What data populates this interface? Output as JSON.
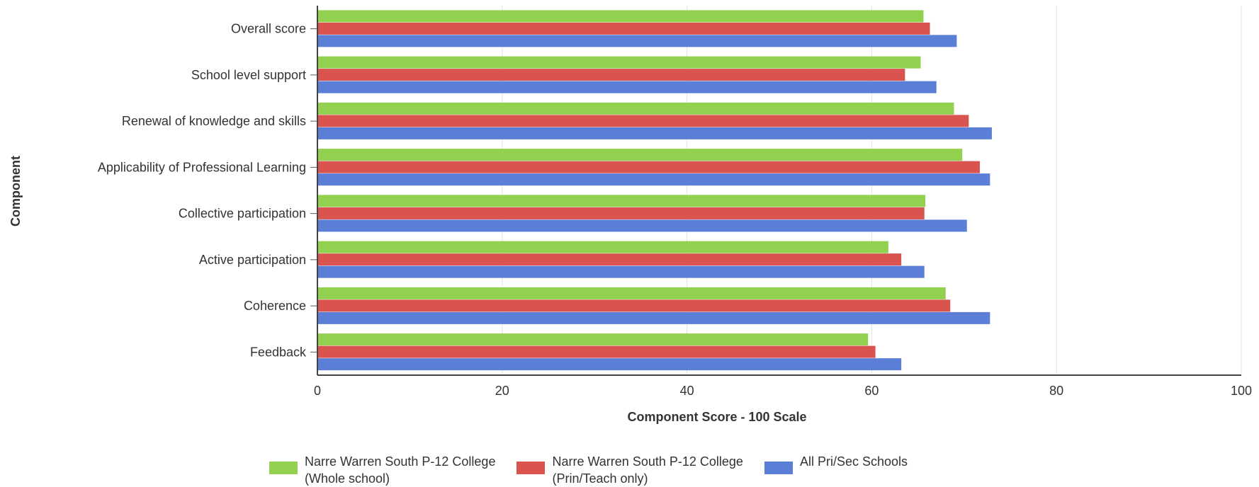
{
  "chart_data": {
    "type": "bar",
    "orientation": "horizontal",
    "title": "",
    "xlabel": "Component Score - 100 Scale",
    "ylabel": "Component",
    "xlim": [
      0,
      100
    ],
    "xticks": [
      0,
      20,
      40,
      60,
      80,
      100
    ],
    "categories": [
      "Overall score",
      "School level support",
      "Renewal of knowledge and skills",
      "Applicability of Professional Learning",
      "Collective participation",
      "Active participation",
      "Coherence",
      "Feedback"
    ],
    "series": [
      {
        "name": "Narre Warren South P-12 College\n(Whole school)",
        "color": "#92d050",
        "values": [
          65.6,
          65.3,
          68.9,
          69.8,
          65.8,
          61.8,
          68.0,
          59.6
        ]
      },
      {
        "name": "Narre Warren South P-12 College\n (Prin/Teach only)",
        "color": "#d9534f",
        "values": [
          66.3,
          63.6,
          70.5,
          71.7,
          65.7,
          63.2,
          68.5,
          60.4
        ]
      },
      {
        "name": "All Pri/Sec Schools",
        "color": "#5b7fd6",
        "values": [
          69.2,
          67.0,
          73.0,
          72.8,
          70.3,
          65.7,
          72.8,
          63.2
        ]
      }
    ],
    "grid": true,
    "legend_position": "bottom"
  }
}
